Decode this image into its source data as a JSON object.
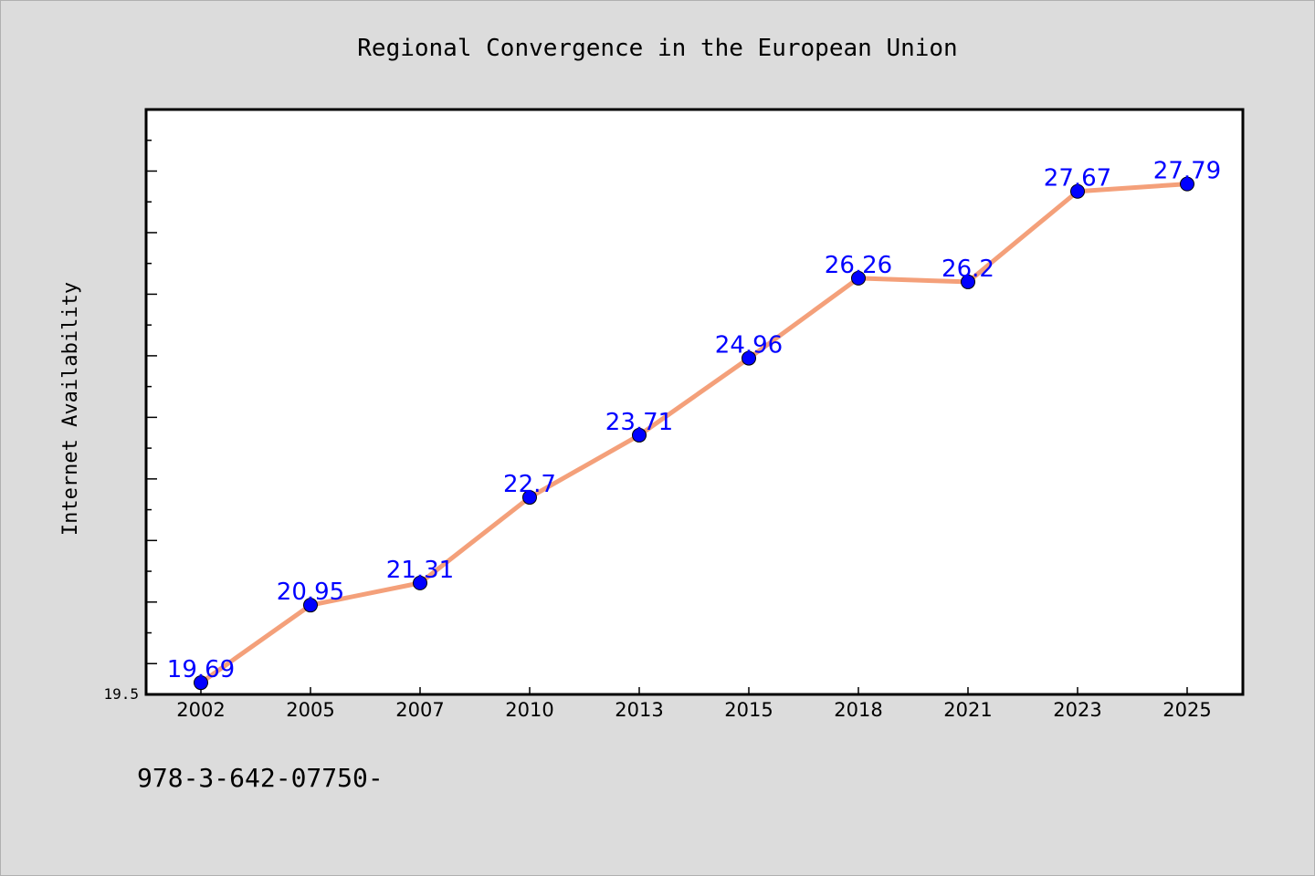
{
  "chart_data": {
    "type": "line",
    "title": "Regional Convergence in the European Union",
    "xlabel": "",
    "ylabel": "Internet Availability",
    "categories": [
      "2002",
      "2005",
      "2007",
      "2010",
      "2013",
      "2015",
      "2018",
      "2021",
      "2023",
      "2025"
    ],
    "series": [
      {
        "values": [
          19.69,
          20.95,
          21.31,
          22.7,
          23.71,
          24.96,
          26.26,
          26.2,
          27.67,
          27.79
        ],
        "line_color": "#f4a07a",
        "marker_color": "#0000ff",
        "label_color": "#0000ff"
      }
    ],
    "data_labels": [
      "19.69",
      "20.95",
      "21.31",
      "22.7",
      "23.71",
      "24.96",
      "26.26",
      "26.2",
      "27.67",
      "27.79"
    ],
    "ylim": [
      19.5,
      29.0
    ],
    "ytick_label": "19.5",
    "grid": false,
    "legend": "none"
  },
  "footer": {
    "text": "978-3-642-07750-"
  }
}
